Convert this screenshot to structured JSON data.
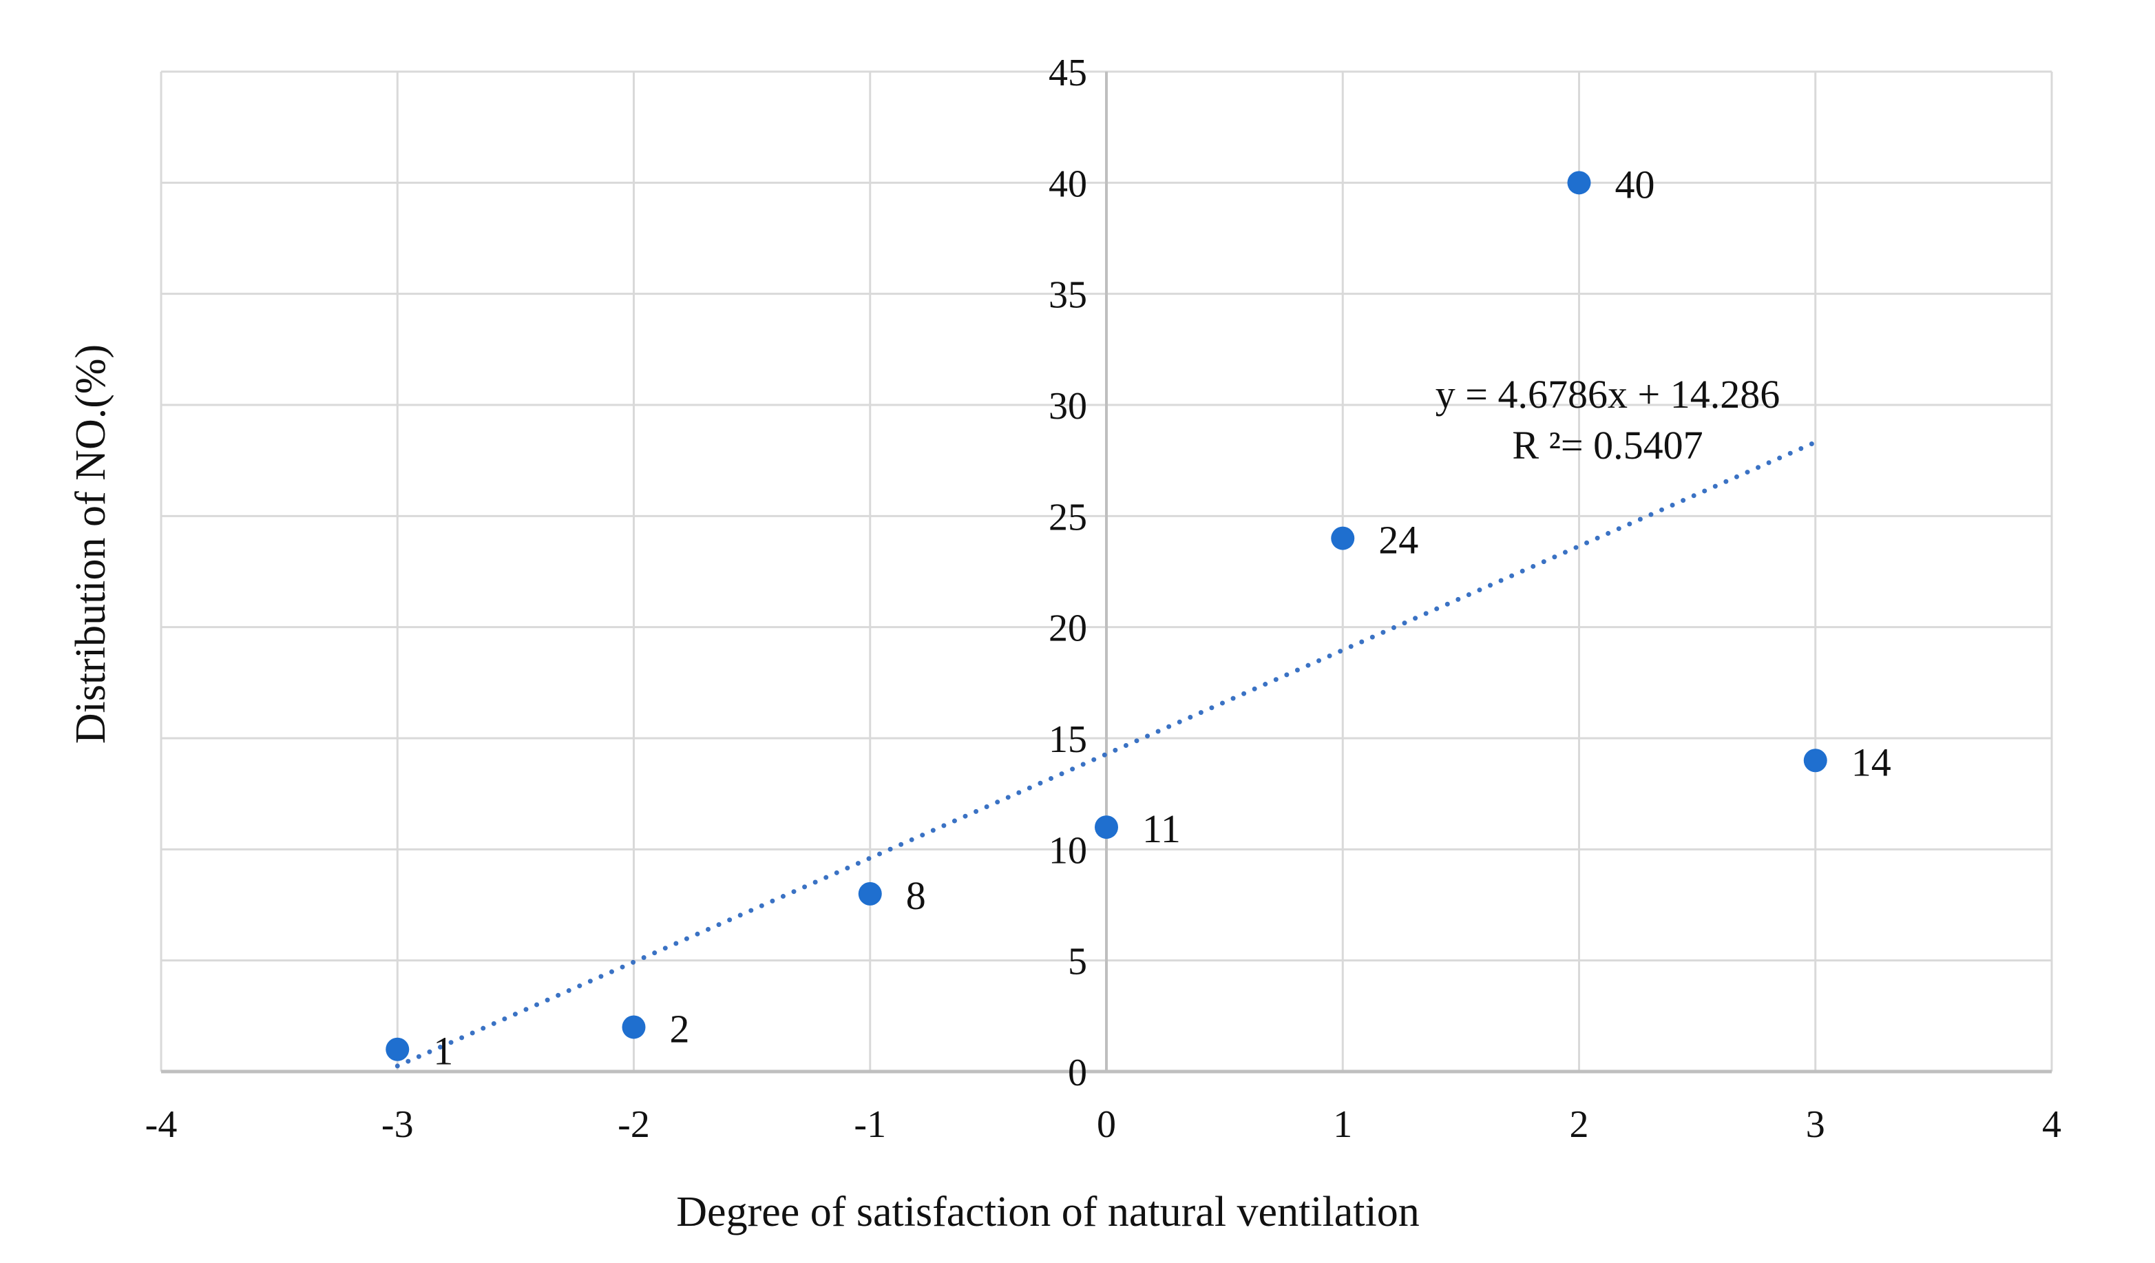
{
  "chart_data": {
    "type": "scatter",
    "title": "",
    "xlabel": "Degree of satisfaction of natural ventilation",
    "ylabel": "Distribution of NO.(%)",
    "xlim": [
      -4,
      4
    ],
    "ylim": [
      0,
      45
    ],
    "x_ticks": [
      -4,
      -3,
      -2,
      -1,
      0,
      1,
      2,
      3,
      4
    ],
    "y_ticks": [
      0,
      5,
      10,
      15,
      20,
      25,
      30,
      35,
      40,
      45
    ],
    "grid": true,
    "legend": "none",
    "series": [
      {
        "x": [
          -3,
          -2,
          -1,
          0,
          1,
          2,
          3
        ],
        "y": [
          1,
          2,
          8,
          11,
          24,
          40,
          14
        ],
        "labels": [
          "1",
          "2",
          "8",
          "11",
          "24",
          "40",
          "14"
        ],
        "color": "#1f6fcf"
      }
    ],
    "trendline": {
      "type": "linear",
      "slope": 4.6786,
      "intercept": 14.286,
      "x_range": [
        -3,
        3
      ],
      "style": "dotted",
      "color": "#3a72c4",
      "equation_label": "y = 4.6786x + 14.286",
      "r2_label": "R ²= 0.5407"
    },
    "colors": {
      "grid": "#d9d9d9",
      "axis": "#bfbfbf"
    }
  }
}
